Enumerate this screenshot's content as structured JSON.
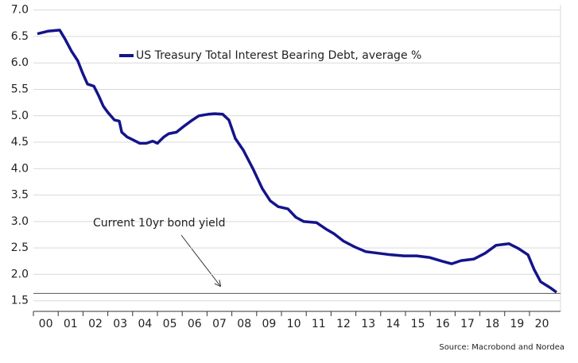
{
  "chart_data": {
    "type": "line",
    "legend": "US Treasury Total Interest Bearing Debt, average %",
    "annotation": "Current 10yr bond yield",
    "source": "Source: Macrobond and Nordea",
    "hline": 1.64,
    "categories": [
      "00",
      "01",
      "02",
      "03",
      "04",
      "05",
      "06",
      "07",
      "08",
      "09",
      "10",
      "11",
      "12",
      "13",
      "14",
      "15",
      "16",
      "17",
      "18",
      "19",
      "20"
    ],
    "xlim": [
      2000,
      2021.25
    ],
    "ylim": [
      1.3,
      7.1
    ],
    "yticks": [
      1.5,
      {
        "value": 2.0,
        "label": "2.0"
      },
      2.5,
      {
        "value": 3.0,
        "label": "3.0"
      },
      3.5,
      {
        "value": 4.0,
        "label": "4.0"
      },
      4.5,
      {
        "value": 5.0,
        "label": "5.0"
      },
      5.5,
      {
        "value": 6.0,
        "label": "6.0"
      },
      6.5,
      {
        "value": 7.0,
        "label": "7.0"
      }
    ],
    "grid": true,
    "series": [
      {
        "name": "US Treasury Total Interest Bearing Debt, average %",
        "color": "#14148c",
        "x": [
          2000.16,
          2000.58,
          2001.06,
          2001.28,
          2001.54,
          2001.79,
          2001.99,
          2002.18,
          2002.44,
          2002.63,
          2002.82,
          2003.01,
          2003.27,
          2003.46,
          2003.56,
          2003.78,
          2004.04,
          2004.29,
          2004.55,
          2004.81,
          2005.0,
          2005.26,
          2005.45,
          2005.77,
          2006.09,
          2006.41,
          2006.67,
          2007.05,
          2007.31,
          2007.63,
          2007.88,
          2008.14,
          2008.46,
          2008.85,
          2009.23,
          2009.55,
          2009.87,
          2010.26,
          2010.58,
          2010.9,
          2011.41,
          2011.79,
          2012.12,
          2012.5,
          2012.95,
          2013.4,
          2013.91,
          2014.42,
          2014.94,
          2015.45,
          2015.96,
          2016.47,
          2016.86,
          2017.24,
          2017.76,
          2018.21,
          2018.65,
          2019.17,
          2019.55,
          2019.94,
          2020.19,
          2020.45,
          2020.83,
          2021.09
        ],
        "values": [
          6.55,
          6.6,
          6.62,
          6.45,
          6.22,
          6.04,
          5.8,
          5.6,
          5.56,
          5.38,
          5.18,
          5.06,
          4.92,
          4.9,
          4.69,
          4.6,
          4.54,
          4.48,
          4.48,
          4.52,
          4.48,
          4.6,
          4.66,
          4.69,
          4.81,
          4.92,
          5.0,
          5.03,
          5.04,
          5.03,
          4.92,
          4.57,
          4.35,
          4.0,
          3.62,
          3.39,
          3.28,
          3.24,
          3.08,
          3.0,
          2.98,
          2.86,
          2.77,
          2.63,
          2.52,
          2.43,
          2.4,
          2.37,
          2.35,
          2.35,
          2.32,
          2.25,
          2.2,
          2.26,
          2.29,
          2.4,
          2.55,
          2.58,
          2.49,
          2.37,
          2.09,
          1.86,
          1.75,
          1.66
        ]
      }
    ]
  }
}
